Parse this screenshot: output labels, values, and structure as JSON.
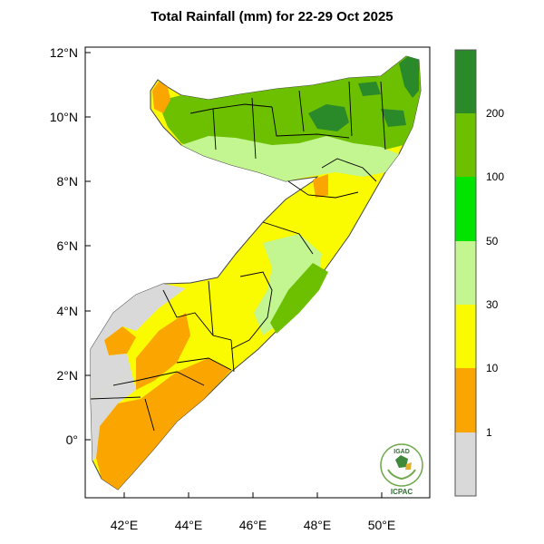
{
  "title": "Total Rainfall (mm) for 22-29 Oct 2025",
  "axes": {
    "lat_labels": [
      "12°N",
      "10°N",
      "8°N",
      "6°N",
      "4°N",
      "2°N",
      "0°"
    ],
    "lon_labels": [
      "42°E",
      "44°E",
      "46°E",
      "48°E",
      "50°E"
    ],
    "lat_range": [
      -1.7,
      12.3
    ],
    "lon_range": [
      40.9,
      51.6
    ]
  },
  "colorbar": {
    "labels": [
      "200",
      "100",
      "50",
      "30",
      "10",
      "1"
    ],
    "colors": [
      "#2a8a2a",
      "#6cc000",
      "#00e400",
      "#c3f591",
      "#fbfb00",
      "#fba500",
      "#d9d9d9"
    ]
  },
  "logo": {
    "top_text": "IGAD",
    "bottom_text": "ICPAC"
  },
  "colors": {
    "dry": "#d9d9d9",
    "orange": "#fba500",
    "yellow": "#fbfb00",
    "light_green": "#c3f591",
    "green": "#6cc000",
    "bright_green": "#00e400",
    "dark_green": "#2a8a2a"
  }
}
